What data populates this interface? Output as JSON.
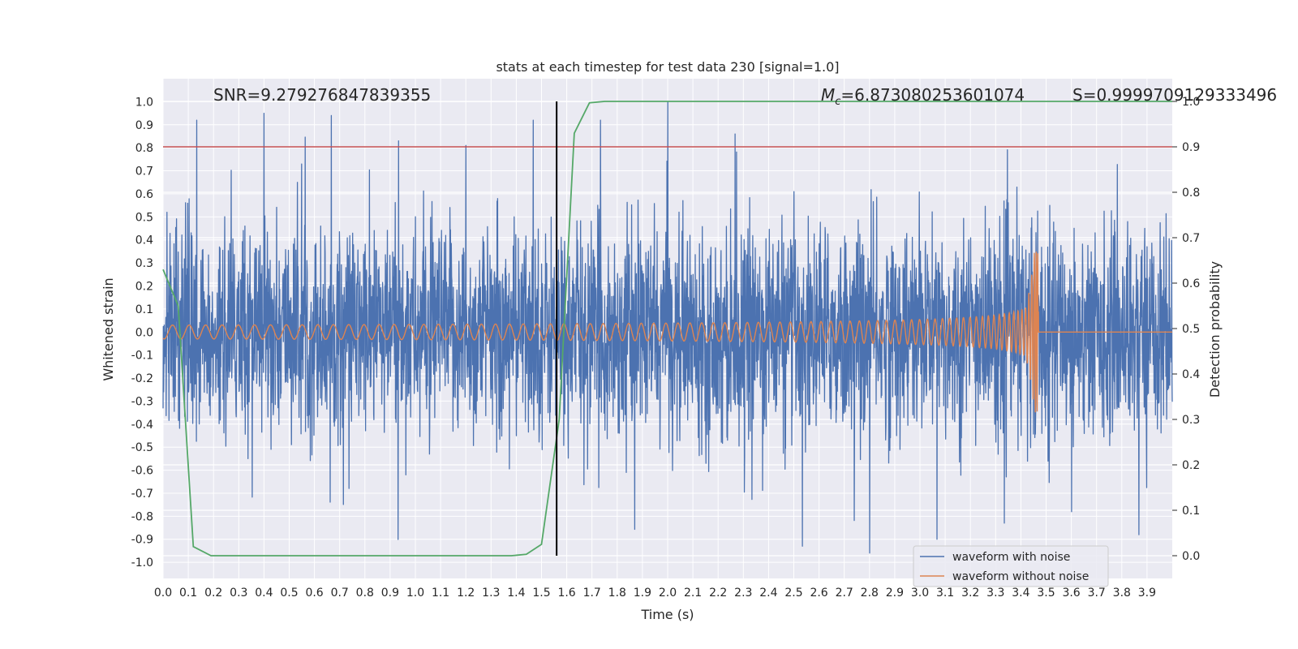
{
  "chart_data": {
    "type": "line",
    "title": "stats at each timestep for test data 230 [signal=1.0]",
    "xlabel": "Time (s)",
    "ylabel": "Whitened strain",
    "ylabel_right": "Detection probability",
    "xlim": [
      0.0,
      4.0
    ],
    "ylim": [
      -1.07,
      1.1
    ],
    "ylim_right": [
      -0.05,
      1.05
    ],
    "x_ticks": [
      "0.0",
      "0.1",
      "0.2",
      "0.3",
      "0.4",
      "0.5",
      "0.6",
      "0.7",
      "0.8",
      "0.9",
      "1.0",
      "1.1",
      "1.2",
      "1.3",
      "1.4",
      "1.5",
      "1.6",
      "1.7",
      "1.8",
      "1.9",
      "2.0",
      "2.1",
      "2.2",
      "2.3",
      "2.4",
      "2.5",
      "2.6",
      "2.7",
      "2.8",
      "2.9",
      "3.0",
      "3.1",
      "3.2",
      "3.3",
      "3.4",
      "3.5",
      "3.6",
      "3.7",
      "3.8",
      "3.9"
    ],
    "y_ticks": [
      "1.0",
      "0.9",
      "0.8",
      "0.7",
      "0.6",
      "0.5",
      "0.4",
      "0.3",
      "0.2",
      "0.1",
      "0.0",
      "-0.1",
      "-0.2",
      "-0.3",
      "-0.4",
      "-0.5",
      "-0.6",
      "-0.7",
      "-0.8",
      "-0.9",
      "-1.0"
    ],
    "y_ticks_right": [
      "1.0",
      "0.9",
      "0.8",
      "0.7",
      "0.6",
      "0.5",
      "0.4",
      "0.3",
      "0.2",
      "0.1",
      "0.0"
    ],
    "annotations": {
      "snr": "SNR=9.279276847839355",
      "mc_symbol": "M",
      "mc_subscript": "c",
      "mc_value": "=6.873080253601074",
      "s": "S=0.9999709129333496"
    },
    "series": [
      {
        "name": "waveform with noise",
        "color": "#4c72b0",
        "axis": "left",
        "description": "noisy whitened strain, amplitude mostly within ±0.5 with spikes to ~±0.95",
        "noise_amplitude": 0.22,
        "peak_values": [
          0.92,
          0.95,
          0.94,
          0.83,
          0.81,
          0.92,
          0.92,
          1.0,
          0.86,
          -0.93,
          -0.96,
          -0.9,
          -0.83,
          -0.78,
          -0.88
        ]
      },
      {
        "name": "waveform without noise",
        "color": "#dd8452",
        "axis": "left",
        "description": "chirp signal, amplitude ~0.03 rising to ~0.3 near merger at t≈3.47 s, then flat",
        "merger_time": 3.47,
        "start_amplitude": 0.03,
        "peak_amplitude": 0.35
      },
      {
        "name": "detection probability",
        "color": "#55a868",
        "axis": "right",
        "x": [
          0.0,
          0.06,
          0.12,
          0.19,
          0.3,
          0.5,
          0.8,
          1.0,
          1.2,
          1.38,
          1.44,
          1.5,
          1.57,
          1.63,
          1.69,
          1.75,
          2.0,
          2.5,
          3.0,
          3.5,
          4.0
        ],
        "values": [
          0.63,
          0.55,
          0.02,
          0.0,
          0.0,
          0.0,
          0.0,
          0.0,
          0.0,
          0.0,
          0.003,
          0.025,
          0.3,
          0.93,
          0.997,
          1.0,
          1.0,
          1.0,
          1.0,
          1.0,
          1.0
        ]
      }
    ],
    "threshold_line": {
      "axis": "right",
      "value": 0.9,
      "color": "#c44e52"
    },
    "vertical_marker": {
      "x": 1.56,
      "color": "#000000"
    },
    "legend": {
      "position": "bottom-right",
      "entries": [
        {
          "label": "waveform with noise",
          "color": "#4c72b0"
        },
        {
          "label": "waveform without noise",
          "color": "#dd8452"
        }
      ]
    },
    "background_color": "#eaeaf2",
    "grid_color": "#ffffff"
  }
}
